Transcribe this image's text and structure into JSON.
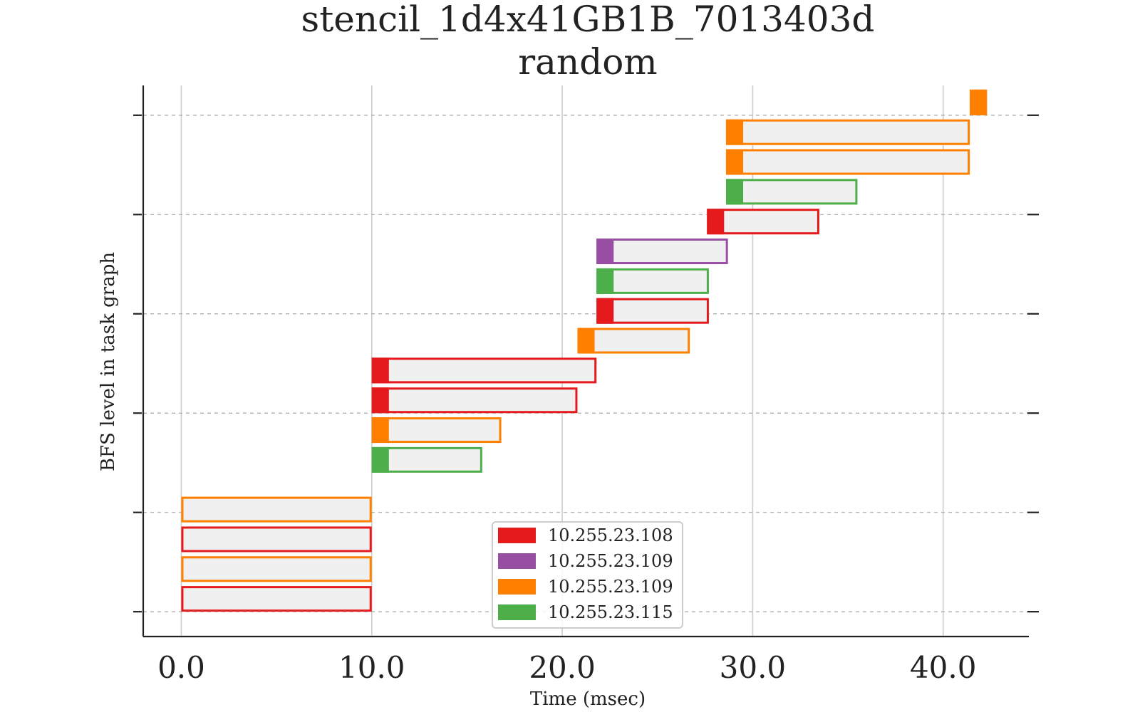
{
  "chart_data": {
    "type": "gantt",
    "title": "stencil_1d4x41GB1B_7013403d",
    "subtitle": "random",
    "xlabel": "Time (msec)",
    "ylabel": "BFS level in task graph",
    "xlim": [
      -2.0,
      44.5
    ],
    "ylim": [
      -0.25,
      5.3
    ],
    "xticks": [
      0,
      10,
      20,
      30,
      40
    ],
    "xtick_labels": [
      "0.0",
      "10.0",
      "20.0",
      "30.0",
      "40.0"
    ],
    "yticks": [
      0,
      1,
      2,
      3,
      4,
      5
    ],
    "grid": {
      "x": true,
      "y": "dashed"
    },
    "legend_position": "lower-center",
    "colors": {
      "red": "#e41a1c",
      "purple": "#984ea3",
      "orange": "#ff7f00",
      "green": "#4daf4a",
      "bar_fill": "#f0f0f0"
    },
    "series": [
      {
        "name": "10.255.23.108",
        "color": "#e41a1c"
      },
      {
        "name": "10.255.23.109",
        "color": "#984ea3"
      },
      {
        "name": "10.255.23.109",
        "color": "#ff7f00"
      },
      {
        "name": "10.255.23.115",
        "color": "#4daf4a"
      }
    ],
    "tasks": [
      {
        "y": 0.0,
        "start": 0.0,
        "lead": 0.0,
        "end": 10.0,
        "series": 0
      },
      {
        "y": 0.3,
        "start": 0.0,
        "lead": 0.0,
        "end": 10.0,
        "series": 2
      },
      {
        "y": 0.6,
        "start": 0.0,
        "lead": 0.0,
        "end": 10.0,
        "series": 0
      },
      {
        "y": 0.9,
        "start": 0.0,
        "lead": 0.0,
        "end": 10.0,
        "series": 2
      },
      {
        "y": 1.4,
        "start": 10.0,
        "lead": 10.9,
        "end": 15.8,
        "series": 3
      },
      {
        "y": 1.7,
        "start": 10.0,
        "lead": 10.9,
        "end": 16.8,
        "series": 2
      },
      {
        "y": 2.0,
        "start": 10.0,
        "lead": 10.9,
        "end": 20.8,
        "series": 0
      },
      {
        "y": 2.3,
        "start": 10.0,
        "lead": 10.9,
        "end": 21.8,
        "series": 0
      },
      {
        "y": 2.6,
        "start": 20.8,
        "lead": 21.7,
        "end": 26.7,
        "series": 2
      },
      {
        "y": 2.9,
        "start": 21.8,
        "lead": 22.7,
        "end": 27.7,
        "series": 0
      },
      {
        "y": 3.2,
        "start": 21.8,
        "lead": 22.7,
        "end": 27.7,
        "series": 3
      },
      {
        "y": 3.5,
        "start": 21.8,
        "lead": 22.7,
        "end": 28.7,
        "series": 1
      },
      {
        "y": 3.8,
        "start": 27.6,
        "lead": 28.5,
        "end": 33.5,
        "series": 0
      },
      {
        "y": 4.1,
        "start": 28.6,
        "lead": 29.5,
        "end": 35.5,
        "series": 3
      },
      {
        "y": 4.4,
        "start": 28.6,
        "lead": 29.5,
        "end": 41.4,
        "series": 2
      },
      {
        "y": 4.7,
        "start": 28.6,
        "lead": 29.5,
        "end": 41.4,
        "series": 2
      },
      {
        "y": 5.0,
        "start": 41.4,
        "lead": 42.3,
        "end": 42.3,
        "series": 2
      }
    ]
  }
}
